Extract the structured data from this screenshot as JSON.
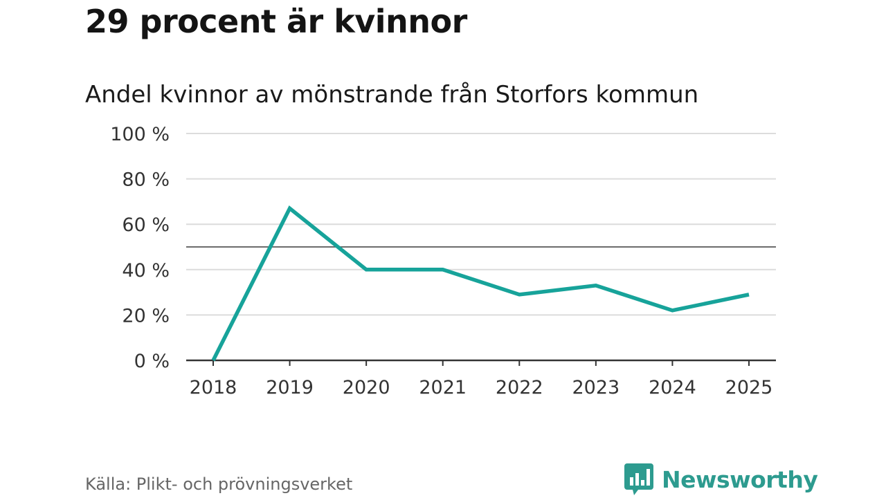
{
  "headline": "29 procent är kvinnor",
  "chart_data": {
    "type": "line",
    "title": "Andel kvinnor av mönstrande från Storfors kommun",
    "xlabel": "",
    "ylabel": "",
    "categories": [
      "2018",
      "2019",
      "2020",
      "2021",
      "2022",
      "2023",
      "2024",
      "2025"
    ],
    "series": [
      {
        "name": "Andel kvinnor",
        "values": [
          0,
          67,
          40,
          40,
          29,
          33,
          22,
          29
        ]
      }
    ],
    "ylim": [
      0,
      100
    ],
    "yticks": [
      0,
      20,
      40,
      60,
      80,
      100
    ],
    "ytick_labels": [
      "0 %",
      "20 %",
      "40 %",
      "60 %",
      "80 %",
      "100 %"
    ],
    "reference_line": 50,
    "grid": true
  },
  "source": "Källa: Plikt- och prövningsverket",
  "brand": {
    "name": "Newsworthy"
  },
  "colors": {
    "series": "#17a39a",
    "grid": "#dcdcdc",
    "reference": "#6b6b6b",
    "axis": "#333333",
    "brand": "#2d9b8f"
  }
}
